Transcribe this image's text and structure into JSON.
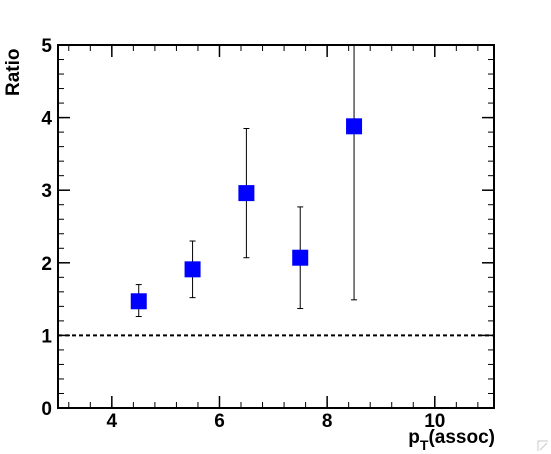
{
  "chart_data": {
    "type": "scatter",
    "xlabel_main": "p",
    "xlabel_sub": "T",
    "xlabel_tail": "(assoc)",
    "ylabel": "Ratio",
    "xlim": [
      3,
      11.1
    ],
    "ylim": [
      0,
      5
    ],
    "xticks": [
      4,
      6,
      8,
      10
    ],
    "yticks": [
      0,
      1,
      2,
      3,
      4,
      5
    ],
    "x_minor_step": 0.4,
    "y_minor_step": 0.2,
    "reference_line": 1,
    "marker_color": "#0000ff",
    "points": [
      {
        "x": 4.5,
        "y": 1.47,
        "err_low": 1.26,
        "err_high": 1.7
      },
      {
        "x": 5.5,
        "y": 1.91,
        "err_low": 1.52,
        "err_high": 2.3
      },
      {
        "x": 6.5,
        "y": 2.96,
        "err_low": 2.07,
        "err_high": 3.85
      },
      {
        "x": 7.5,
        "y": 2.07,
        "err_low": 1.37,
        "err_high": 2.77
      },
      {
        "x": 8.5,
        "y": 3.88,
        "err_low": 1.49,
        "err_high": 5.0
      }
    ]
  }
}
